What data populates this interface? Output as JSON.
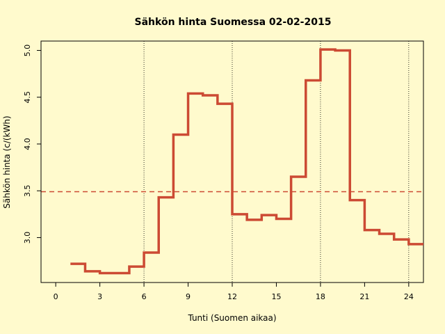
{
  "chart_data": {
    "type": "line",
    "title": "Sähkön hinta Suomessa 02-02-2015",
    "xlabel": "Tunti (Suomen aikaa)",
    "ylabel": "Sähkön hinta (c/(kWh)",
    "xlim": [
      -1,
      25
    ],
    "ylim": [
      2.52,
      5.1
    ],
    "x_ticks": [
      0,
      3,
      6,
      9,
      12,
      15,
      18,
      21,
      24
    ],
    "x_tick_labels": [
      "0",
      "3",
      "6",
      "9",
      "12",
      "15",
      "18",
      "21",
      "24"
    ],
    "y_ticks": [
      3.0,
      3.5,
      4.0,
      4.5,
      5.0
    ],
    "y_tick_labels": [
      "3.0",
      "3.5",
      "4.0",
      "4.5",
      "5.0"
    ],
    "vertical_lines": [
      6,
      12,
      18,
      24
    ],
    "mean_line": 3.49,
    "series": [
      {
        "step": "post",
        "color": "#cc4a33",
        "x": [
          1,
          2,
          3,
          4,
          5,
          6,
          7,
          8,
          9,
          10,
          11,
          12,
          13,
          14,
          15,
          16,
          17,
          18,
          19,
          20,
          21,
          22,
          23,
          24,
          25
        ],
        "values": [
          2.72,
          2.64,
          2.62,
          2.62,
          2.69,
          2.84,
          3.43,
          4.1,
          4.54,
          4.52,
          4.43,
          3.25,
          3.19,
          3.24,
          3.2,
          3.65,
          4.68,
          5.01,
          5.0,
          3.4,
          3.08,
          3.04,
          2.98,
          2.93,
          2.93
        ]
      }
    ],
    "grid": false,
    "legend": "none"
  }
}
